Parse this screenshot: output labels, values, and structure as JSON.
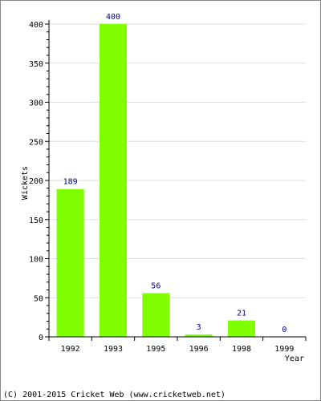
{
  "chart_data": {
    "type": "bar",
    "categories": [
      "1992",
      "1993",
      "1995",
      "1996",
      "1998",
      "1999"
    ],
    "values": [
      189,
      400,
      56,
      3,
      21,
      0
    ],
    "data_labels": [
      "189",
      "400",
      "56",
      "3",
      "21",
      "0"
    ],
    "title": "",
    "xlabel": "Year",
    "ylabel": "Wickets",
    "ylim": [
      0,
      400
    ],
    "yticks": [
      0,
      50,
      100,
      150,
      200,
      250,
      300,
      350,
      400
    ],
    "grid": true,
    "colors": {
      "bar": "#80ff00",
      "data_label": "#000080",
      "grid": "#dddddd",
      "axis": "#000000",
      "text": "#000000"
    }
  },
  "footer": {
    "copyright": "(C) 2001-2015 Cricket Web (www.cricketweb.net)"
  }
}
